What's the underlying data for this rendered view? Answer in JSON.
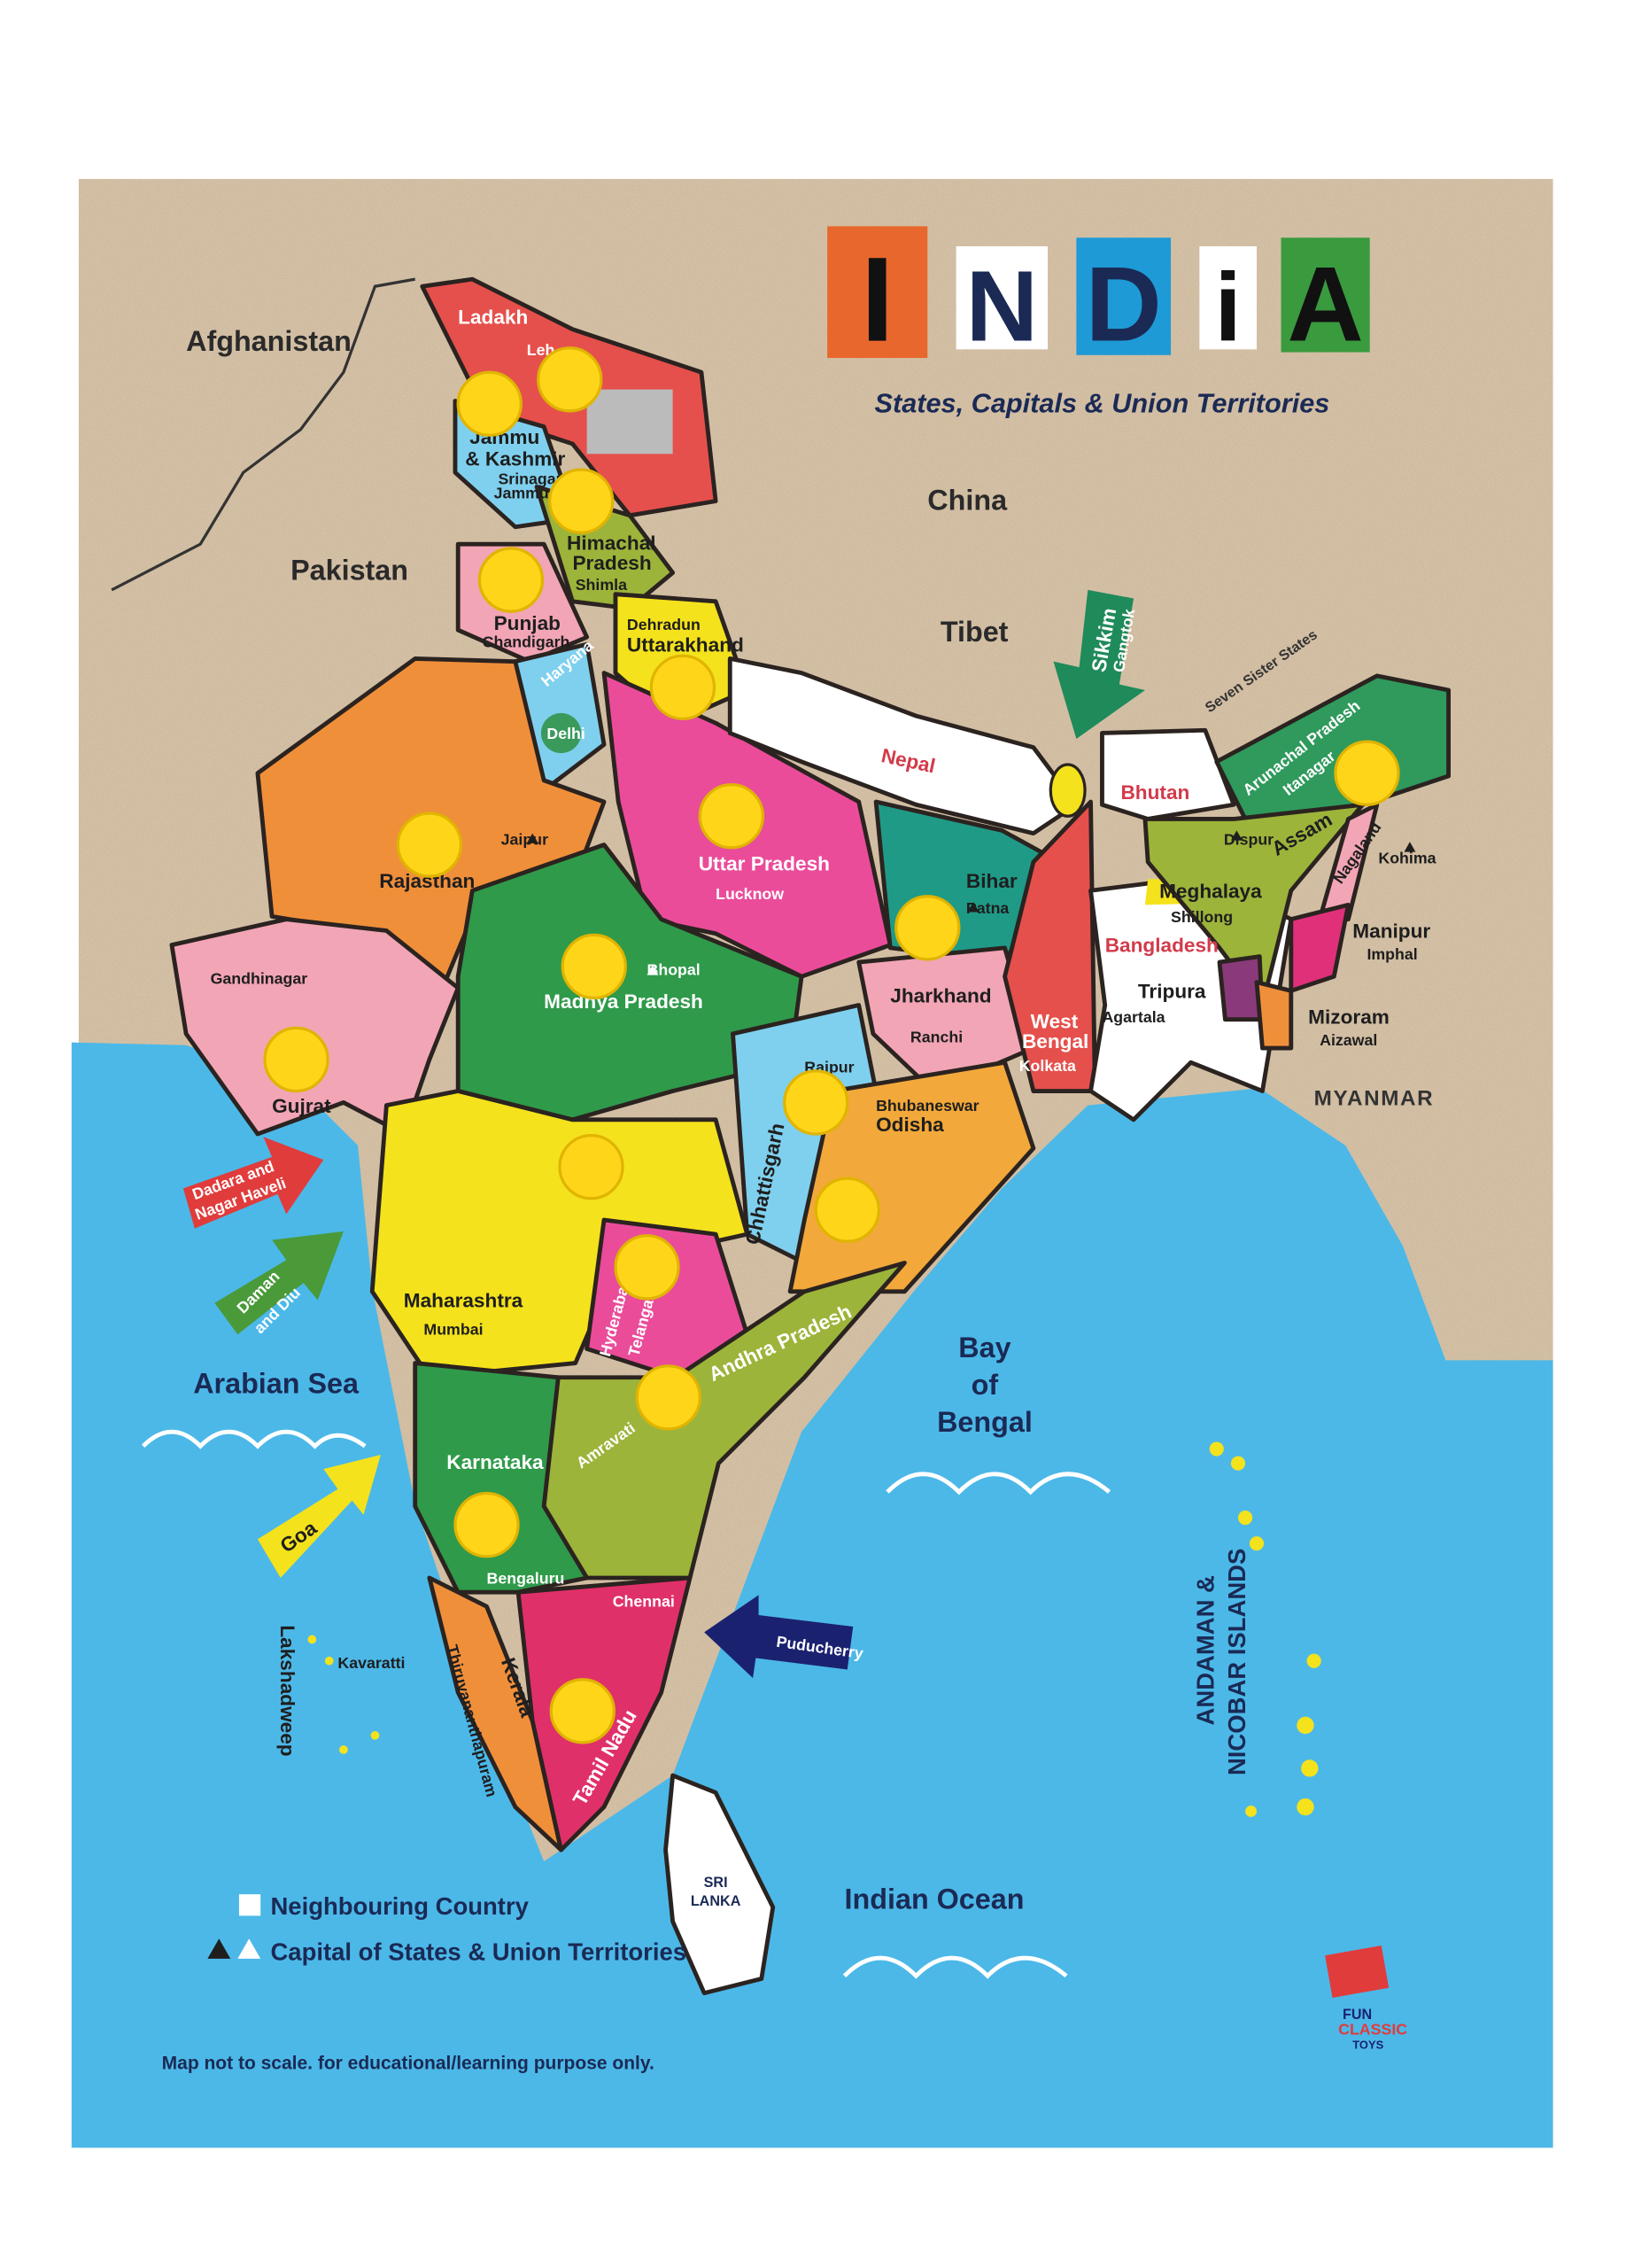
{
  "title": {
    "letters": [
      "I",
      "N",
      "D",
      "i",
      "A"
    ],
    "tile_colors": [
      "#e8672c",
      "#ffffff",
      "#1e9ad6",
      "#ffffff",
      "#3a9a3e"
    ],
    "subtitle": "States, Capitals & Union Territories"
  },
  "countries": {
    "afghanistan": "Afghanistan",
    "pakistan": "Pakistan",
    "china": "China",
    "tibet": "Tibet",
    "nepal": "Nepal",
    "bhutan": "Bhutan",
    "bangladesh": "Bangladesh",
    "myanmar": "MYANMAR",
    "sri_lanka": [
      "SRI",
      "LANKA"
    ],
    "seven_sister_states": "Seven Sister States"
  },
  "waters": {
    "arabian_sea": "Arabian Sea",
    "bay_of_bengal": [
      "Bay",
      "of",
      "Bengal"
    ],
    "indian_ocean": "Indian Ocean"
  },
  "states": {
    "ladakh": {
      "name": "Ladakh",
      "capital": "Leh"
    },
    "jk": {
      "name": [
        "Jammu",
        "& Kashmir"
      ],
      "capital": "Srinagar",
      "capital2": "Jammu"
    },
    "hp": {
      "name": [
        "Himachal",
        "Pradesh"
      ],
      "capital": "Shimla"
    },
    "punjab": {
      "name": "Punjab",
      "capital": "Chandigarh"
    },
    "haryana": {
      "name": "Haryana"
    },
    "delhi": {
      "name": "Delhi"
    },
    "uttarakhand": {
      "name": "Uttarakhand",
      "capital": "Dehradun"
    },
    "rajasthan": {
      "name": "Rajasthan",
      "capital": "Jaipur"
    },
    "up": {
      "name": "Uttar Pradesh",
      "capital": "Lucknow"
    },
    "gujarat": {
      "name": "Gujrat",
      "capital": "Gandhinagar"
    },
    "mp": {
      "name": "Madhya Pradesh",
      "capital": "Bhopal"
    },
    "bihar": {
      "name": "Bihar",
      "capital": "Patna"
    },
    "jharkhand": {
      "name": "Jharkhand",
      "capital": "Ranchi"
    },
    "wb": {
      "name": [
        "West",
        "Bengal"
      ],
      "capital": "Kolkata"
    },
    "chhattisgarh": {
      "name": "Chhattisgarh",
      "capital": "Raipur"
    },
    "odisha": {
      "name": "Odisha",
      "capital": "Bhubaneswar"
    },
    "maharashtra": {
      "name": "Maharashtra",
      "capital": "Mumbai"
    },
    "telangana": {
      "name": "Telangana",
      "capital": "Hyderabad"
    },
    "ap": {
      "name": "Andhra Pradesh",
      "capital": "Amravati"
    },
    "karnataka": {
      "name": "Karnataka",
      "capital": "Bengaluru"
    },
    "kerala": {
      "name": "Kerala",
      "capital": "Thiruvananthapuram"
    },
    "tn": {
      "name": "Tamil Nadu",
      "capital": "Chennai"
    },
    "arunachal": {
      "name": "Arunachal Pradesh",
      "capital": "Itanagar"
    },
    "assam": {
      "name": "Assam",
      "capital": "Dispur"
    },
    "nagaland": {
      "name": "Nagaland",
      "capital": "Kohima"
    },
    "meghalaya": {
      "name": "Meghalaya",
      "capital": "Shillong"
    },
    "manipur": {
      "name": "Manipur",
      "capital": "Imphal"
    },
    "tripura": {
      "name": "Tripura",
      "capital": "Agartala"
    },
    "mizoram": {
      "name": "Mizoram",
      "capital": "Aizawal"
    },
    "sikkim": {
      "name": "Sikkim",
      "capital": "Gangtok"
    }
  },
  "union_territories": {
    "dadra": [
      "Dadara and",
      "Nagar Haveli"
    ],
    "daman": [
      "Daman",
      "and Diu"
    ],
    "goa": "Goa",
    "puducherry": "Puducherry",
    "lakshadweep": "Lakshadweep",
    "kavaratti": "Kavaratti",
    "andaman": [
      "ANDAMAN &",
      "NICOBAR ISLANDS"
    ]
  },
  "legend": {
    "neighbouring": "Neighbouring Country",
    "capital": "Capital of States & Union Territories"
  },
  "footer": "Map not to scale. for educational/learning purpose only.",
  "logo": {
    "line1": "FUN",
    "line2": "CLASSIC",
    "line3": "TOYS"
  },
  "colors": {
    "land": "#d8c4a8",
    "sea": "#4cb8e8",
    "pin": "#ffd51a"
  }
}
